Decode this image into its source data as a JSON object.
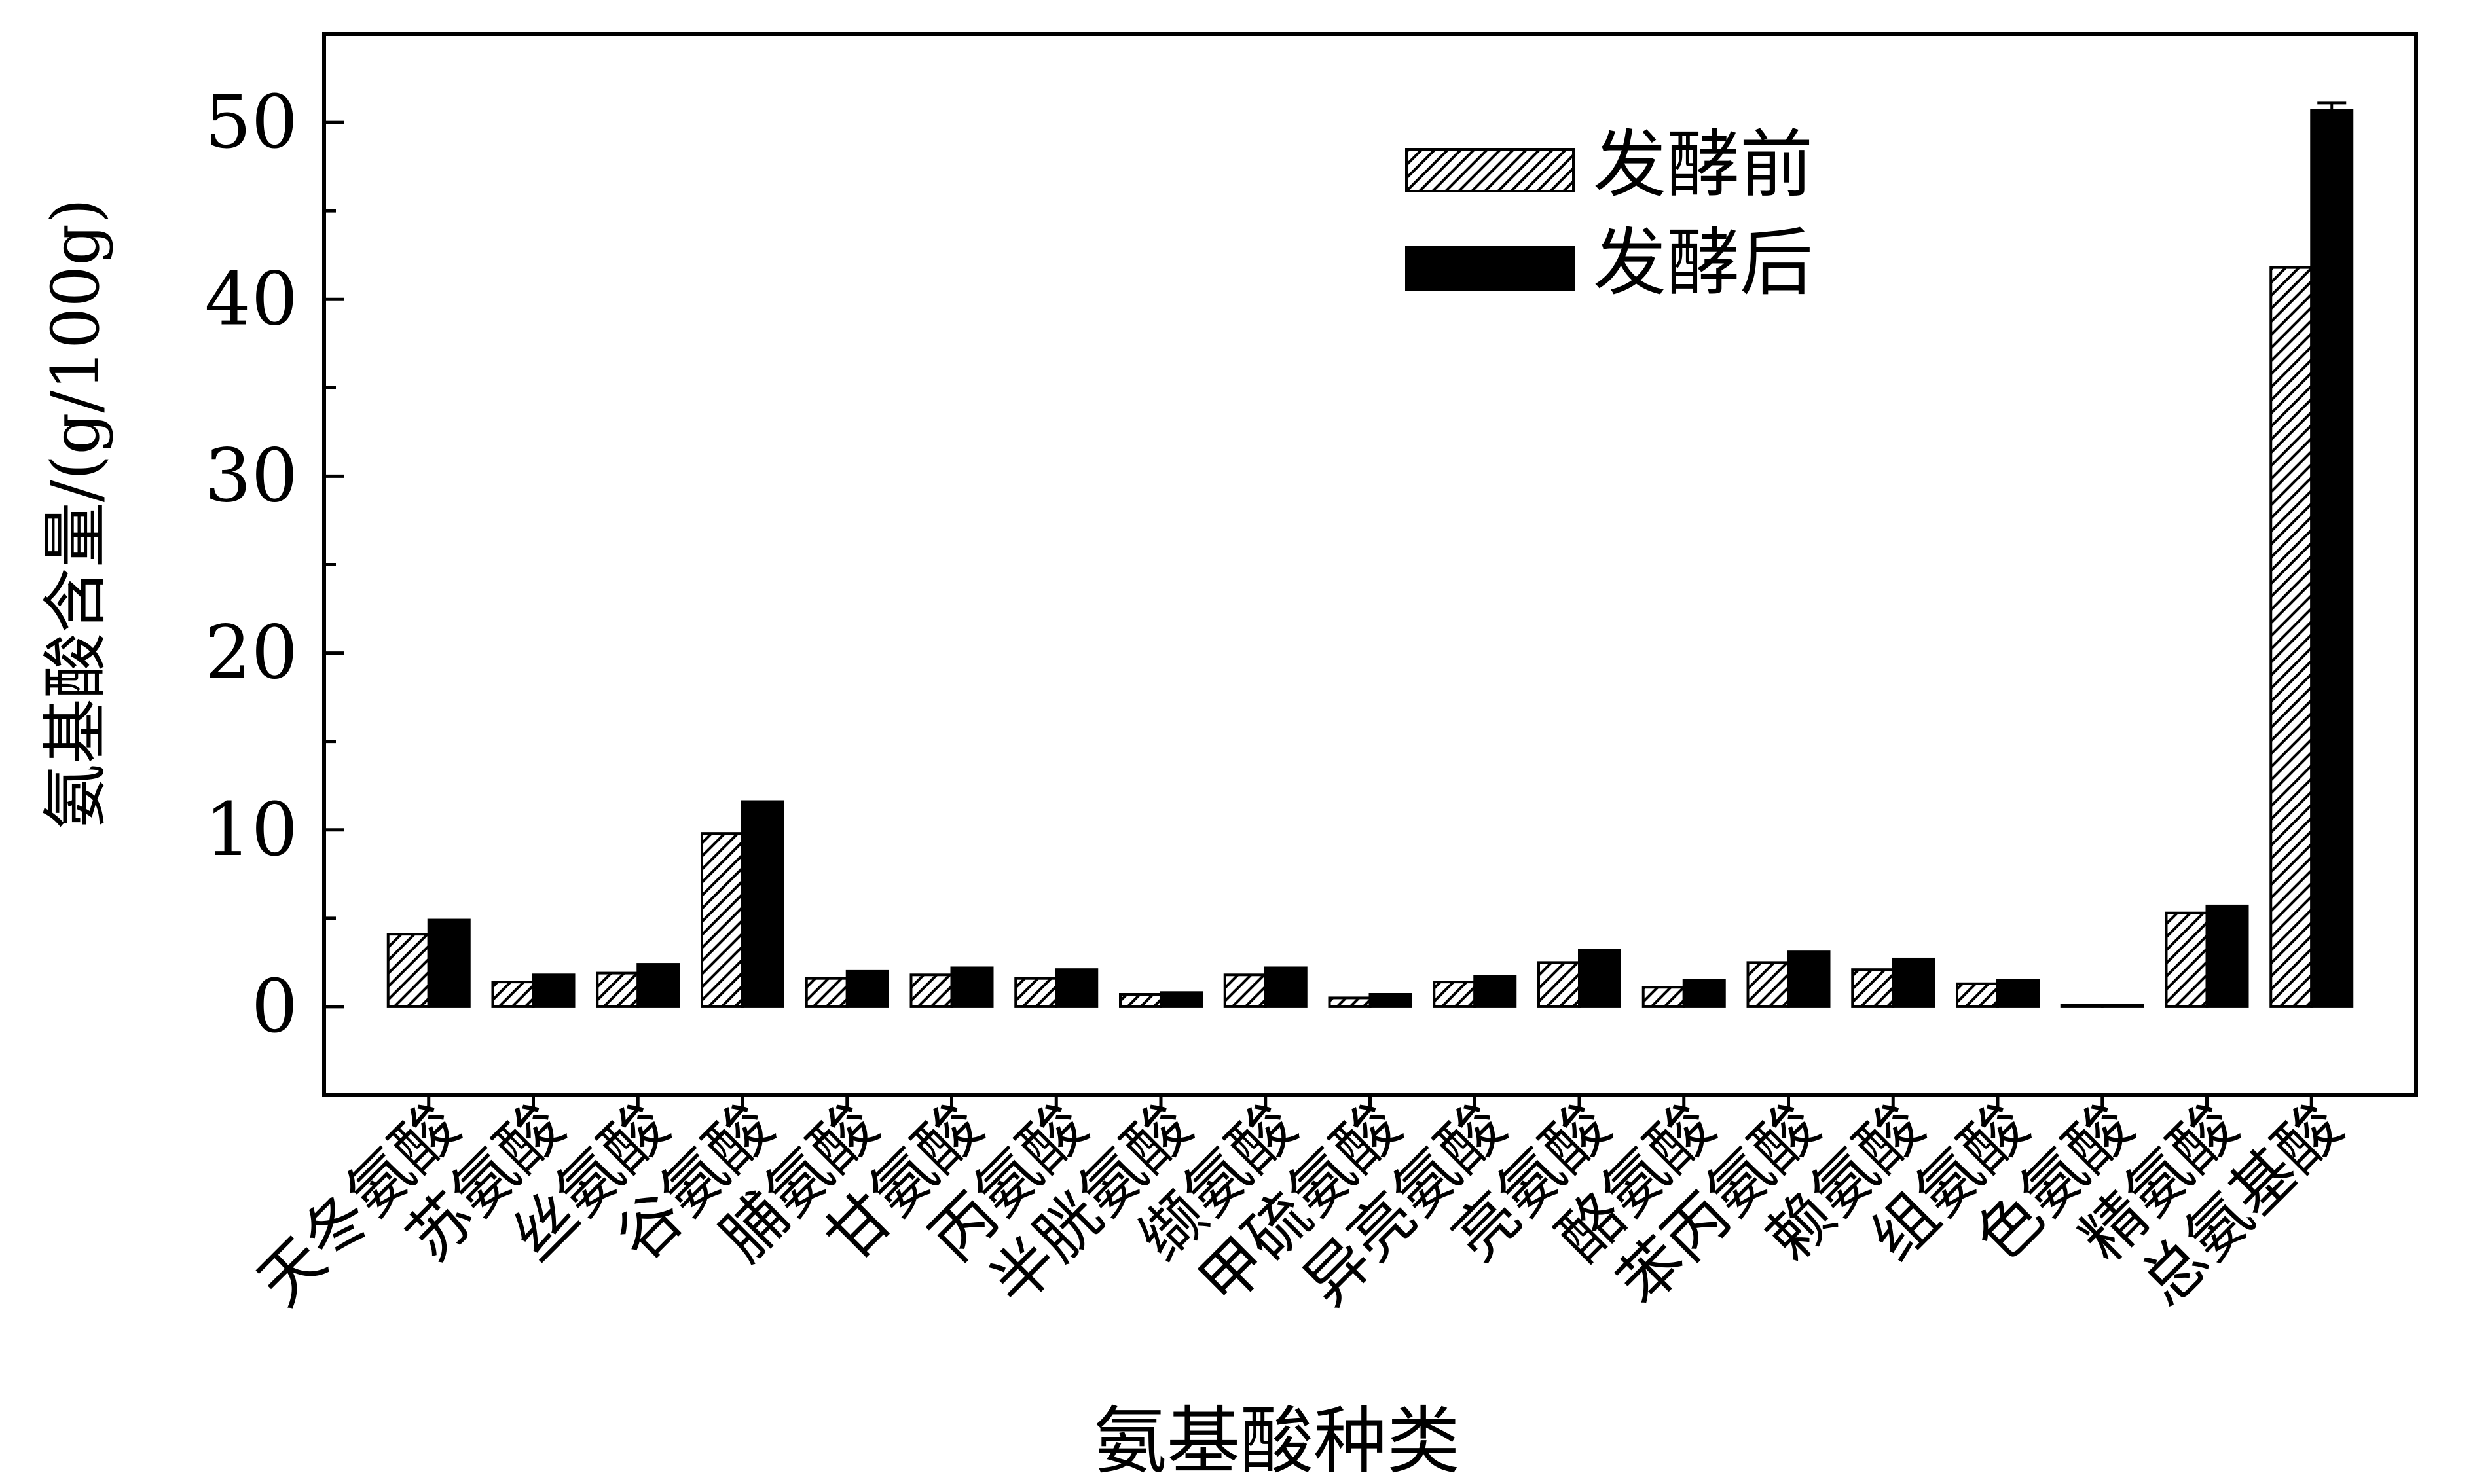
{
  "chart_data": {
    "type": "bar",
    "title": "",
    "xlabel": "氨基酸种类",
    "ylabel": "氨基酸含量/(g/100g)",
    "ylim": [
      -5,
      55
    ],
    "yticks": [
      0,
      10,
      20,
      30,
      40,
      50
    ],
    "grid": false,
    "legend_position": "top-right",
    "categories": [
      "天冬氨酸",
      "苏氨酸",
      "丝氨酸",
      "谷氨酸",
      "脯氨酸",
      "甘氨酸",
      "丙氨酸",
      "半胱氨酸",
      "缬氨酸",
      "甲硫氨酸",
      "异亮氨酸",
      "亮氨酸",
      "酪氨酸",
      "苯丙氨酸",
      "赖氨酸",
      "组氨酸",
      "色氨酸",
      "精氨酸",
      "总氨基酸"
    ],
    "series": [
      {
        "name": "发酵前",
        "pattern": "hatched",
        "color": "#ffffff",
        "values": [
          4.1,
          1.4,
          1.9,
          9.8,
          1.6,
          1.8,
          1.6,
          0.7,
          1.8,
          0.5,
          1.4,
          2.5,
          1.1,
          2.5,
          2.1,
          1.3,
          0.1,
          5.3,
          41.8
        ],
        "errors": [
          0,
          0,
          0,
          0,
          0,
          0,
          0,
          0,
          0,
          0,
          0,
          0,
          0,
          0,
          0,
          0,
          0,
          0,
          0
        ]
      },
      {
        "name": "发酵后",
        "pattern": "solid",
        "color": "#000000",
        "values": [
          4.9,
          1.8,
          2.4,
          11.6,
          2.0,
          2.2,
          2.1,
          0.8,
          2.2,
          0.7,
          1.7,
          3.2,
          1.5,
          3.1,
          2.7,
          1.5,
          0.1,
          5.7,
          50.7
        ],
        "errors": [
          0,
          0,
          0,
          0,
          0,
          0,
          0,
          0,
          0,
          0,
          0,
          0,
          0,
          0,
          0,
          0,
          0,
          0,
          0.4
        ]
      }
    ]
  }
}
